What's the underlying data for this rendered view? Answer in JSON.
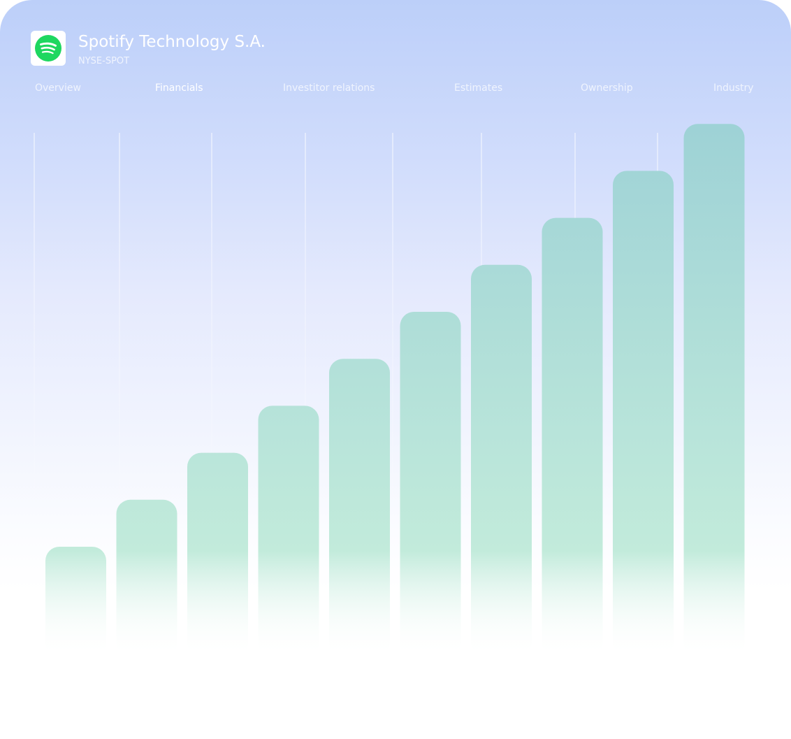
{
  "header": {
    "company_name": "Spotify Technology S.A.",
    "ticker": "NYSE-SPOT",
    "logo_icon": "spotify-logo-icon",
    "logo_color": "#1ed760"
  },
  "tabs": [
    {
      "label": "Overview",
      "active": false
    },
    {
      "label": "Financials",
      "active": true
    },
    {
      "label": "Investitor relations",
      "active": false
    },
    {
      "label": "Estimates",
      "active": false
    },
    {
      "label": "Ownership",
      "active": false
    },
    {
      "label": "Industry",
      "active": false
    }
  ],
  "chart_data": {
    "type": "bar",
    "values": [
      1,
      2,
      3,
      4,
      5,
      6,
      7,
      8,
      9,
      10
    ],
    "ylim": [
      0,
      11.5
    ],
    "grid": true,
    "bar_color": "#a4dbc9"
  }
}
